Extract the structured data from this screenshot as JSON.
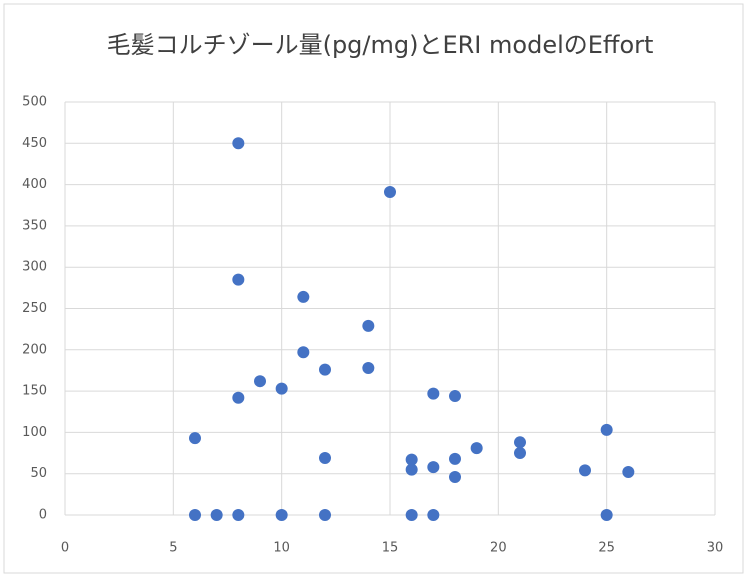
{
  "chart_data": {
    "type": "scatter",
    "title": "毛髪コルチゾール量(pg/mg)とERI modelのEffort",
    "series": [
      {
        "color": "#4472c4",
        "x": [
          6,
          6,
          7,
          8,
          8,
          8,
          8,
          9,
          10,
          10,
          11,
          11,
          12,
          12,
          12,
          14,
          14,
          15,
          16,
          16,
          16,
          17,
          17,
          17,
          18,
          18,
          18,
          19,
          21,
          21,
          24,
          25,
          25,
          26
        ],
        "values": [
          93,
          0,
          0,
          0,
          450,
          285,
          142,
          162,
          153,
          0,
          264,
          197,
          176,
          69,
          0,
          229,
          178,
          391,
          67,
          55,
          0,
          147,
          58,
          0,
          144,
          68,
          46,
          81,
          88,
          75,
          54,
          103,
          0,
          52
        ]
      }
    ],
    "xlim": [
      0,
      30
    ],
    "xticks": [
      0,
      5,
      10,
      15,
      20,
      25,
      30
    ],
    "ylim": [
      0,
      500
    ],
    "yticks": [
      0,
      50,
      100,
      150,
      200,
      250,
      300,
      350,
      400,
      450,
      500
    ],
    "grid": true
  }
}
